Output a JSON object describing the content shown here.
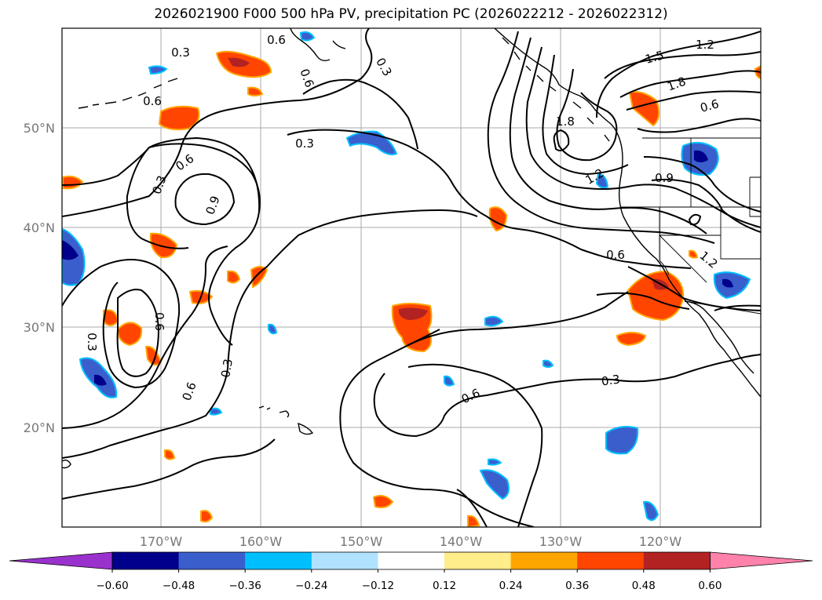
{
  "title": "2026021900 F000 500 hPa PV, precipitation PC (2026022212 - 2026022312)",
  "lon_labels": [
    "170°W",
    "160°W",
    "150°W",
    "140°W",
    "130°W",
    "120°W"
  ],
  "lat_labels": [
    "50°N",
    "40°N",
    "30°N",
    "20°N"
  ],
  "colorbar": {
    "colors": [
      "#9932CC",
      "#00008B",
      "#3A5FCD",
      "#00BFFF",
      "#B0E2FF",
      "#FFFFFF",
      "#FFEC8B",
      "#FFA500",
      "#FF4500",
      "#B22222",
      "#FF82AB"
    ],
    "tick_labels": [
      "−0.60",
      "−0.48",
      "−0.36",
      "−0.24",
      "−0.12",
      "0.12",
      "0.24",
      "0.36",
      "0.48",
      "0.60"
    ]
  },
  "contour_labels": [
    "0.3",
    "0.6",
    "0.9",
    "1.2",
    "1.5",
    "1.8"
  ],
  "colors": {
    "frame": "#000000",
    "grid": "#aaaaaa",
    "contour": "#000000"
  }
}
